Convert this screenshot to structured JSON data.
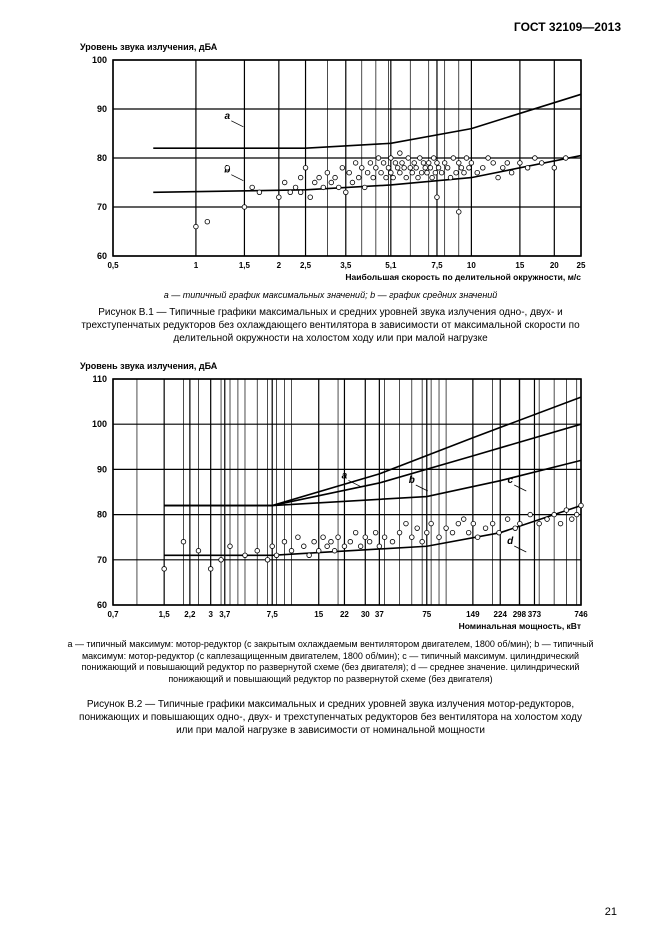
{
  "header": "ГОСТ  32109—2013",
  "page_number": "21",
  "chart1": {
    "ylabel": "Уровень звука излучения, дБА",
    "xlabel": "Наибольшая скорость по делительной окружности, м/с",
    "ylim": [
      60,
      100
    ],
    "ytick_step": 10,
    "xticks": [
      0.5,
      1,
      1.5,
      2,
      2.5,
      3.5,
      5.1,
      7.5,
      10,
      15,
      20,
      25
    ],
    "xtick_labels": [
      "0,5",
      "1",
      "1,5",
      "2",
      "2,5",
      "3,5",
      "5,1",
      "7,5",
      "10",
      "15",
      "20",
      "25"
    ],
    "xscale": "log",
    "background": "#ffffff",
    "grid_color": "#000000",
    "line_color": "#000000",
    "line_width": 1.6,
    "scatter_marker": "circle",
    "scatter_color": "#ffffff",
    "scatter_stroke": "#000000",
    "scatter_r": 2.3,
    "curves": {
      "a": [
        [
          0.7,
          82
        ],
        [
          2.5,
          82
        ],
        [
          5.1,
          83
        ],
        [
          10,
          86
        ],
        [
          25,
          93
        ]
      ],
      "b": [
        [
          0.7,
          73
        ],
        [
          2.5,
          73.5
        ],
        [
          5.1,
          74.5
        ],
        [
          10,
          76
        ],
        [
          25,
          80.5
        ]
      ]
    },
    "curve_labels": {
      "a": [
        1.3,
        88
      ],
      "b": [
        1.3,
        77
      ]
    },
    "scatter": [
      [
        1.0,
        66
      ],
      [
        1.1,
        67
      ],
      [
        1.3,
        78
      ],
      [
        1.5,
        70
      ],
      [
        1.6,
        74
      ],
      [
        1.7,
        73
      ],
      [
        2.0,
        72
      ],
      [
        2.1,
        75
      ],
      [
        2.2,
        73
      ],
      [
        2.3,
        74
      ],
      [
        2.4,
        73
      ],
      [
        2.4,
        76
      ],
      [
        2.5,
        78
      ],
      [
        2.6,
        72
      ],
      [
        2.7,
        75
      ],
      [
        2.8,
        76
      ],
      [
        2.9,
        74
      ],
      [
        3.0,
        77
      ],
      [
        3.1,
        75
      ],
      [
        3.2,
        76
      ],
      [
        3.3,
        74
      ],
      [
        3.4,
        78
      ],
      [
        3.5,
        73
      ],
      [
        3.6,
        77
      ],
      [
        3.7,
        75
      ],
      [
        3.8,
        79
      ],
      [
        3.9,
        76
      ],
      [
        4.0,
        78
      ],
      [
        4.1,
        74
      ],
      [
        4.2,
        77
      ],
      [
        4.3,
        79
      ],
      [
        4.4,
        76
      ],
      [
        4.5,
        78
      ],
      [
        4.6,
        80
      ],
      [
        4.7,
        77
      ],
      [
        4.8,
        79
      ],
      [
        4.9,
        76
      ],
      [
        5.0,
        78
      ],
      [
        5.1,
        77
      ],
      [
        5.1,
        80
      ],
      [
        5.2,
        76
      ],
      [
        5.3,
        79
      ],
      [
        5.4,
        78
      ],
      [
        5.5,
        77
      ],
      [
        5.5,
        81
      ],
      [
        5.6,
        79
      ],
      [
        5.7,
        78
      ],
      [
        5.8,
        76
      ],
      [
        5.9,
        80
      ],
      [
        6.0,
        78
      ],
      [
        6.1,
        77
      ],
      [
        6.2,
        79
      ],
      [
        6.3,
        78
      ],
      [
        6.4,
        76
      ],
      [
        6.5,
        80
      ],
      [
        6.6,
        77
      ],
      [
        6.7,
        79
      ],
      [
        6.8,
        78
      ],
      [
        6.9,
        77
      ],
      [
        7.0,
        79
      ],
      [
        7.1,
        78
      ],
      [
        7.2,
        76
      ],
      [
        7.3,
        80
      ],
      [
        7.4,
        77
      ],
      [
        7.5,
        79
      ],
      [
        7.5,
        72
      ],
      [
        7.6,
        78
      ],
      [
        7.8,
        77
      ],
      [
        8.0,
        79
      ],
      [
        8.2,
        78
      ],
      [
        8.4,
        76
      ],
      [
        8.6,
        80
      ],
      [
        8.8,
        77
      ],
      [
        9.0,
        79
      ],
      [
        9.0,
        69
      ],
      [
        9.2,
        78
      ],
      [
        9.4,
        77
      ],
      [
        9.6,
        80
      ],
      [
        9.8,
        78
      ],
      [
        10.0,
        79
      ],
      [
        10.5,
        77
      ],
      [
        11.0,
        78
      ],
      [
        11.5,
        80
      ],
      [
        12.0,
        79
      ],
      [
        12.5,
        76
      ],
      [
        13.0,
        78
      ],
      [
        13.5,
        79
      ],
      [
        14.0,
        77
      ],
      [
        15.0,
        79
      ],
      [
        16.0,
        78
      ],
      [
        17.0,
        80
      ],
      [
        18.0,
        79
      ],
      [
        20.0,
        78
      ],
      [
        22.0,
        80
      ]
    ],
    "legend_text": "a — типичный график максимальных значений; b — график средних значений",
    "caption": "Рисунок В.1 — Типичные графики максимальных и средних уровней звука излучения одно-, двух- и трехступенчатых редукторов без охлаждающего вентилятора в зависимости от максимальной скорости по делительной окружности на холостом ходу или при малой нагрузке"
  },
  "chart2": {
    "ylabel": "Уровень звука излучения, дБА",
    "xlabel": "Номинальная мощность, кВт",
    "ylim": [
      60,
      110
    ],
    "ytick_step": 10,
    "xticks": [
      0.7,
      1.5,
      2.2,
      3,
      3.7,
      7.5,
      15,
      22,
      30,
      37,
      75,
      149,
      224,
      298,
      373,
      746
    ],
    "xtick_labels": [
      "0,7",
      "1,5",
      "2,2",
      "3",
      "3,7",
      "7,5",
      "15",
      "22",
      "30",
      "37",
      "75",
      "149",
      "224",
      "298",
      "373",
      "746"
    ],
    "xscale": "log",
    "background": "#ffffff",
    "grid_color": "#000000",
    "line_color": "#000000",
    "line_width": 1.6,
    "scatter_marker": "circle",
    "scatter_color": "#ffffff",
    "scatter_stroke": "#000000",
    "scatter_r": 2.3,
    "curves": {
      "a": [
        [
          1.5,
          82
        ],
        [
          7.5,
          82
        ],
        [
          37,
          89
        ],
        [
          149,
          97
        ],
        [
          746,
          106
        ]
      ],
      "b": [
        [
          1.5,
          82
        ],
        [
          7.5,
          82
        ],
        [
          37,
          87
        ],
        [
          149,
          93
        ],
        [
          746,
          100
        ]
      ],
      "c": [
        [
          1.5,
          82
        ],
        [
          7.5,
          82
        ],
        [
          75,
          84
        ],
        [
          224,
          87.5
        ],
        [
          746,
          92
        ]
      ],
      "d": [
        [
          1.5,
          71
        ],
        [
          7.5,
          71
        ],
        [
          75,
          73
        ],
        [
          224,
          76
        ],
        [
          746,
          82
        ]
      ]
    },
    "curve_labels": {
      "a": [
        22,
        88
      ],
      "b": [
        60,
        87
      ],
      "c": [
        260,
        87
      ],
      "d": [
        260,
        73.5
      ]
    },
    "scatter": [
      [
        1.5,
        68
      ],
      [
        2.0,
        74
      ],
      [
        2.5,
        72
      ],
      [
        3.0,
        68
      ],
      [
        3.5,
        70
      ],
      [
        4.0,
        73
      ],
      [
        5.0,
        71
      ],
      [
        6.0,
        72
      ],
      [
        7.0,
        70
      ],
      [
        7.5,
        73
      ],
      [
        8.0,
        71
      ],
      [
        9.0,
        74
      ],
      [
        10.0,
        72
      ],
      [
        11.0,
        75
      ],
      [
        12.0,
        73
      ],
      [
        13.0,
        71
      ],
      [
        14.0,
        74
      ],
      [
        15.0,
        72
      ],
      [
        16.0,
        75
      ],
      [
        17.0,
        73
      ],
      [
        18.0,
        74
      ],
      [
        19.0,
        72
      ],
      [
        20.0,
        75
      ],
      [
        22.0,
        73
      ],
      [
        24.0,
        74
      ],
      [
        26.0,
        76
      ],
      [
        28.0,
        73
      ],
      [
        30.0,
        75
      ],
      [
        32.0,
        74
      ],
      [
        35.0,
        76
      ],
      [
        37.0,
        73
      ],
      [
        40.0,
        75
      ],
      [
        45.0,
        74
      ],
      [
        50.0,
        76
      ],
      [
        55.0,
        78
      ],
      [
        60.0,
        75
      ],
      [
        65.0,
        77
      ],
      [
        70.0,
        74
      ],
      [
        75.0,
        76
      ],
      [
        80.0,
        78
      ],
      [
        90.0,
        75
      ],
      [
        100.0,
        77
      ],
      [
        110.0,
        76
      ],
      [
        120.0,
        78
      ],
      [
        130.0,
        79
      ],
      [
        140.0,
        76
      ],
      [
        150.0,
        78
      ],
      [
        160.0,
        75
      ],
      [
        180.0,
        77
      ],
      [
        200.0,
        78
      ],
      [
        220.0,
        76
      ],
      [
        250.0,
        79
      ],
      [
        280.0,
        77
      ],
      [
        300.0,
        78
      ],
      [
        350.0,
        80
      ],
      [
        400.0,
        78
      ],
      [
        450.0,
        79
      ],
      [
        500.0,
        80
      ],
      [
        550.0,
        78
      ],
      [
        600.0,
        81
      ],
      [
        650.0,
        79
      ],
      [
        700.0,
        80
      ],
      [
        746.0,
        82
      ]
    ],
    "legend_text": "a — типичный максимум: мотор-редуктор (с закрытым охлаждаемым вентилятором двигателем, 1800 об/мин); b — типичный максимум: мотор-редуктор (с каплезащищенным двигателем, 1800 об/мин); c — типичный максимум. цилиндрический понижающий и повышающий редуктор по развернутой схеме (без двигателя); d — среднее значение. цилиндрический понижающий и повышающий редуктор по развернутой схеме (без двигателя)",
    "caption": "Рисунок В.2 — Типичные графики максимальных и средних уровней звука излучения мотор-редукторов, понижающих и повышающих одно-, двух- и трехступенчатых редукторов без вентилятора на холостом ходу или при малой нагрузке в зависимости от номинальной мощности"
  }
}
